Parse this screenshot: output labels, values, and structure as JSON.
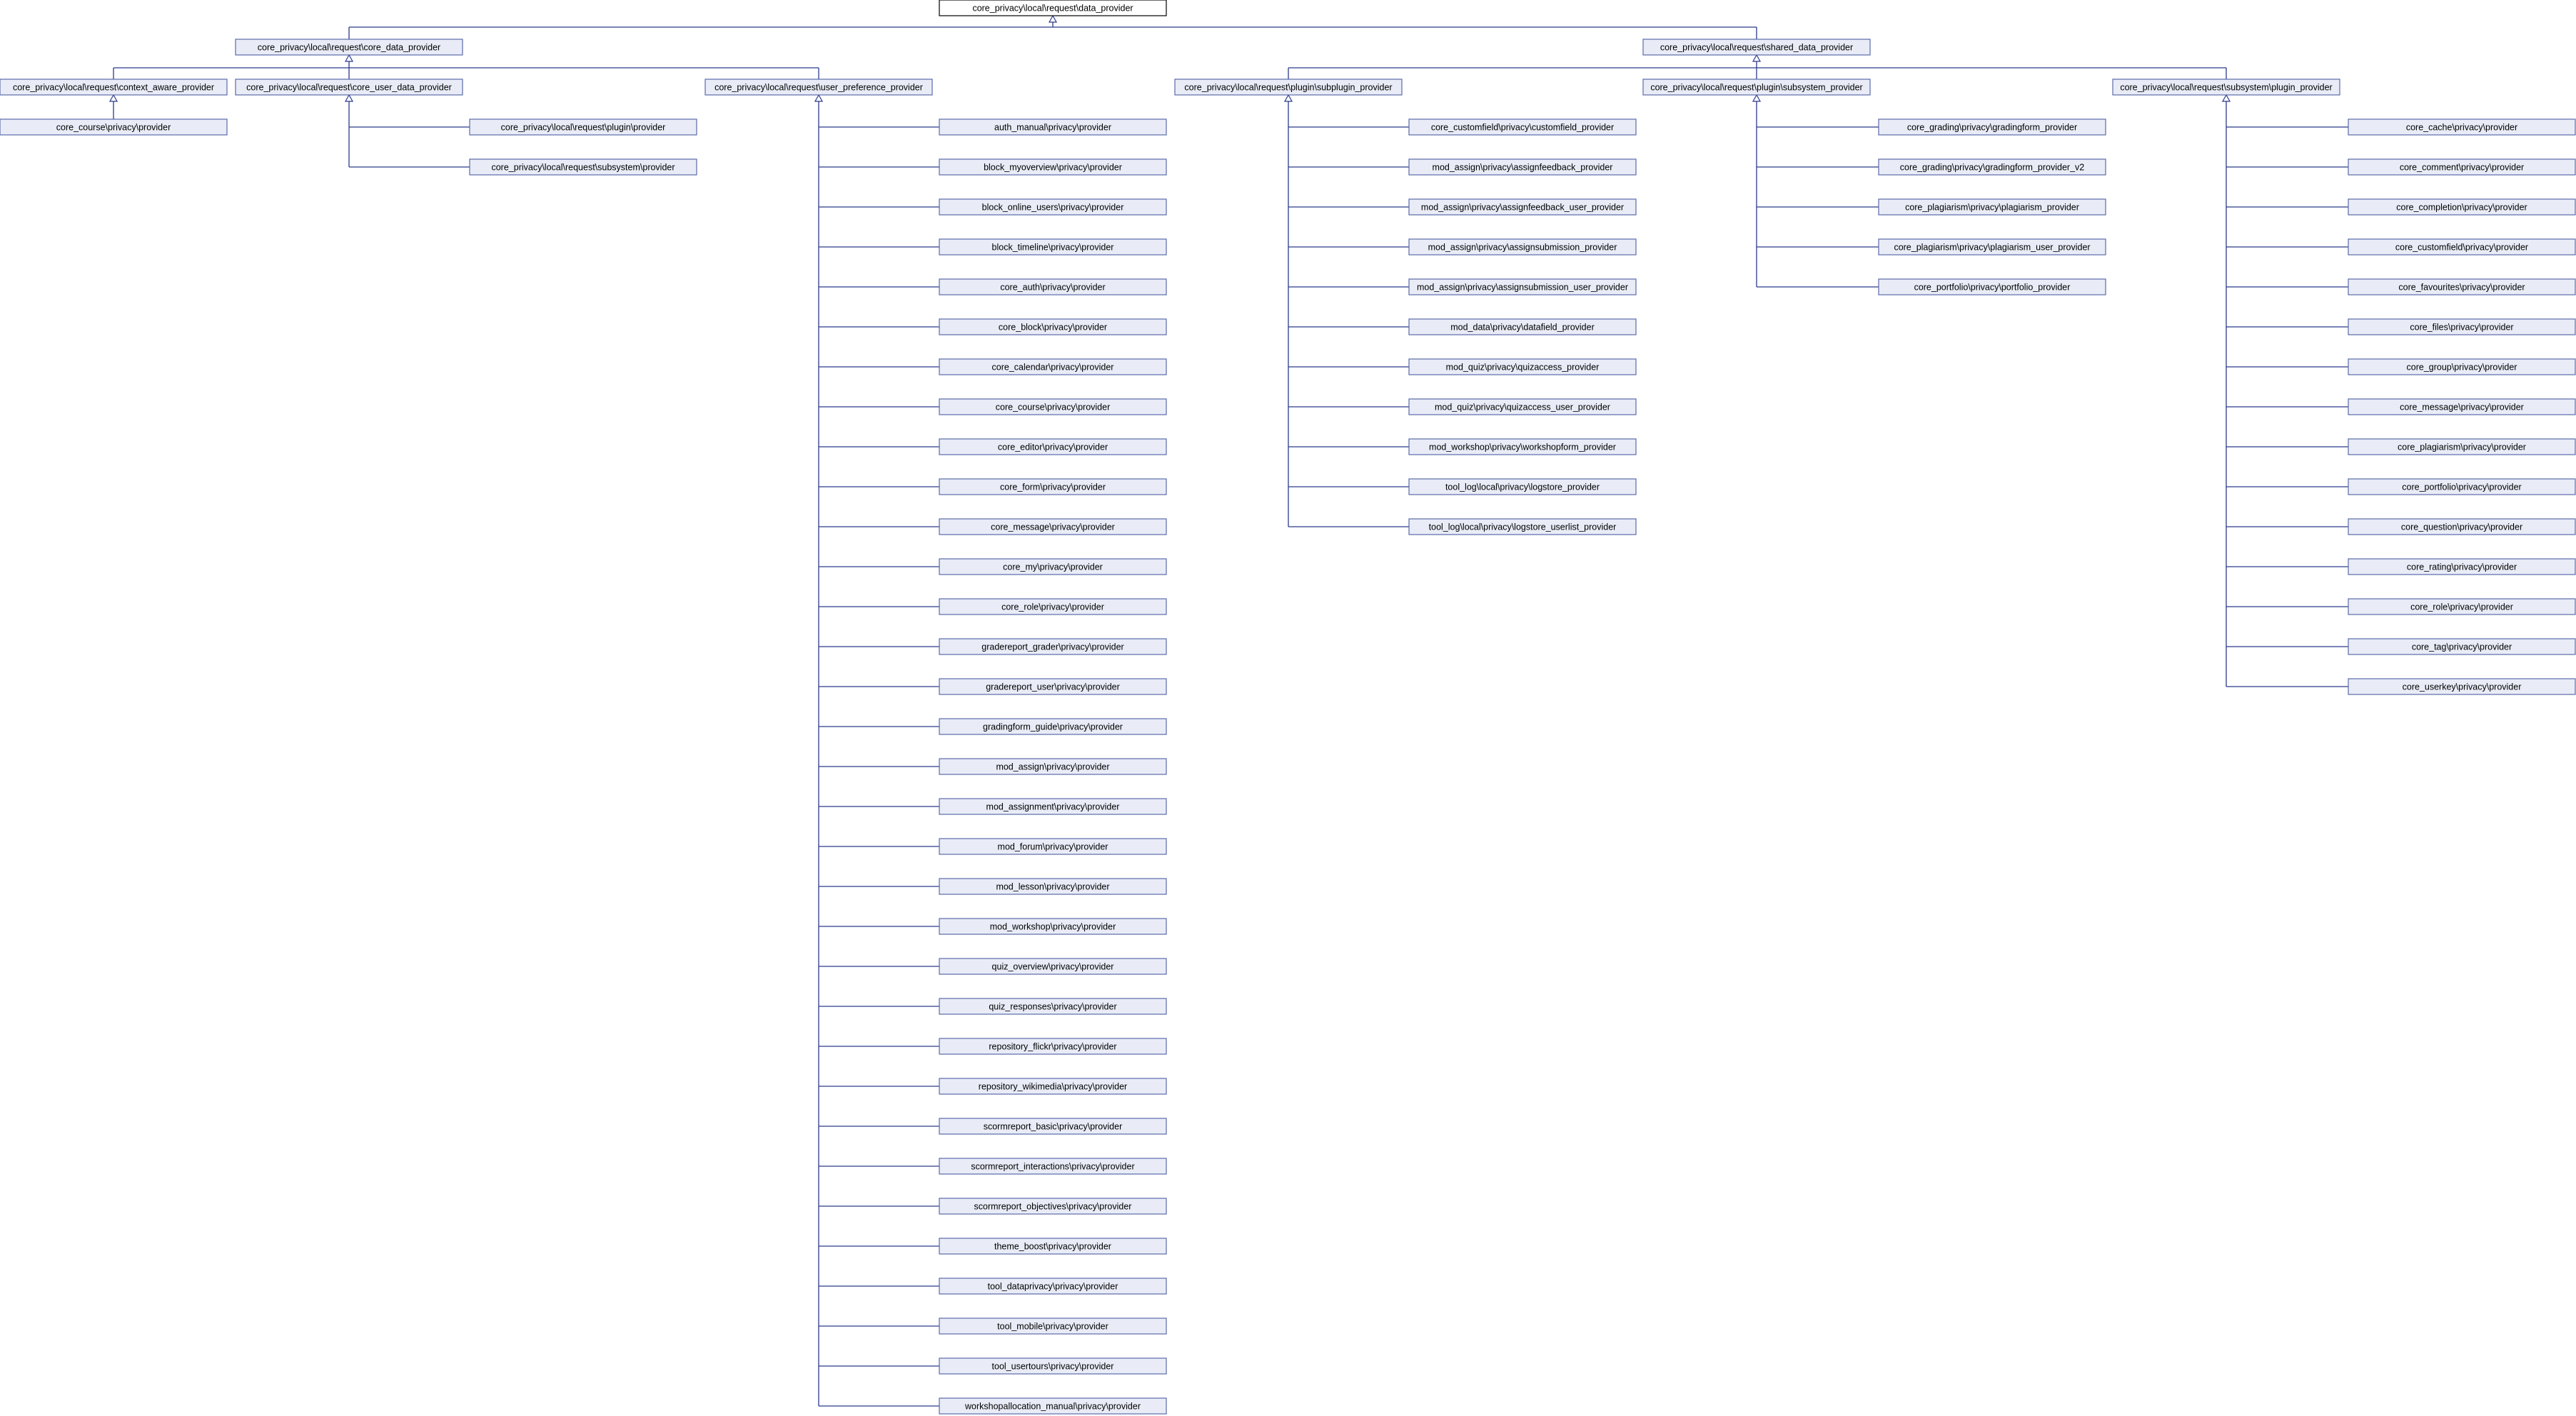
{
  "diagram": {
    "root": "core_privacy\\local\\request\\data_provider",
    "level1": [
      {
        "id": "core_data_provider",
        "label": "core_privacy\\local\\request\\core_data_provider"
      },
      {
        "id": "shared_data_provider",
        "label": "core_privacy\\local\\request\\shared_data_provider"
      }
    ],
    "level2": [
      {
        "id": "context_aware_provider",
        "parent": "core_data_provider",
        "label": "core_privacy\\local\\request\\context_aware_provider"
      },
      {
        "id": "core_user_data_provider",
        "parent": "core_data_provider",
        "label": "core_privacy\\local\\request\\core_user_data_provider"
      },
      {
        "id": "user_preference_provider",
        "parent": "core_data_provider",
        "label": "core_privacy\\local\\request\\user_preference_provider"
      },
      {
        "id": "subplugin_provider",
        "parent": "shared_data_provider",
        "label": "core_privacy\\local\\request\\plugin\\subplugin_provider"
      },
      {
        "id": "subsystem_provider",
        "parent": "shared_data_provider",
        "label": "core_privacy\\local\\request\\plugin\\subsystem_provider"
      },
      {
        "id": "plugin_provider",
        "parent": "shared_data_provider",
        "label": "core_privacy\\local\\request\\subsystem\\plugin_provider"
      }
    ],
    "children": {
      "context_aware_provider": [
        "core_course\\privacy\\provider"
      ],
      "core_user_data_provider": [
        "core_privacy\\local\\request\\plugin\\provider",
        "core_privacy\\local\\request\\subsystem\\provider"
      ],
      "user_preference_provider": [
        "auth_manual\\privacy\\provider",
        "block_myoverview\\privacy\\provider",
        "block_online_users\\privacy\\provider",
        "block_timeline\\privacy\\provider",
        "core_auth\\privacy\\provider",
        "core_block\\privacy\\provider",
        "core_calendar\\privacy\\provider",
        "core_course\\privacy\\provider",
        "core_editor\\privacy\\provider",
        "core_form\\privacy\\provider",
        "core_message\\privacy\\provider",
        "core_my\\privacy\\provider",
        "core_role\\privacy\\provider",
        "gradereport_grader\\privacy\\provider",
        "gradereport_user\\privacy\\provider",
        "gradingform_guide\\privacy\\provider",
        "mod_assign\\privacy\\provider",
        "mod_assignment\\privacy\\provider",
        "mod_forum\\privacy\\provider",
        "mod_lesson\\privacy\\provider",
        "mod_workshop\\privacy\\provider",
        "quiz_overview\\privacy\\provider",
        "quiz_responses\\privacy\\provider",
        "repository_flickr\\privacy\\provider",
        "repository_wikimedia\\privacy\\provider",
        "scormreport_basic\\privacy\\provider",
        "scormreport_interactions\\privacy\\provider",
        "scormreport_objectives\\privacy\\provider",
        "theme_boost\\privacy\\provider",
        "tool_dataprivacy\\privacy\\provider",
        "tool_mobile\\privacy\\provider",
        "tool_usertours\\privacy\\provider",
        "workshopallocation_manual\\privacy\\provider"
      ],
      "subplugin_provider": [
        "core_customfield\\privacy\\customfield_provider",
        "mod_assign\\privacy\\assignfeedback_provider",
        "mod_assign\\privacy\\assignfeedback_user_provider",
        "mod_assign\\privacy\\assignsubmission_provider",
        "mod_assign\\privacy\\assignsubmission_user_provider",
        "mod_data\\privacy\\datafield_provider",
        "mod_quiz\\privacy\\quizaccess_provider",
        "mod_quiz\\privacy\\quizaccess_user_provider",
        "mod_workshop\\privacy\\workshopform_provider",
        "tool_log\\local\\privacy\\logstore_provider",
        "tool_log\\local\\privacy\\logstore_userlist_provider"
      ],
      "subsystem_provider": [
        "core_grading\\privacy\\gradingform_provider",
        "core_grading\\privacy\\gradingform_provider_v2",
        "core_plagiarism\\privacy\\plagiarism_provider",
        "core_plagiarism\\privacy\\plagiarism_user_provider",
        "core_portfolio\\privacy\\portfolio_provider"
      ],
      "plugin_provider": [
        "core_cache\\privacy\\provider",
        "core_comment\\privacy\\provider",
        "core_completion\\privacy\\provider",
        "core_customfield\\privacy\\provider",
        "core_favourites\\privacy\\provider",
        "core_files\\privacy\\provider",
        "core_group\\privacy\\provider",
        "core_message\\privacy\\provider",
        "core_plagiarism\\privacy\\provider",
        "core_portfolio\\privacy\\provider",
        "core_question\\privacy\\provider",
        "core_rating\\privacy\\provider",
        "core_role\\privacy\\provider",
        "core_tag\\privacy\\provider",
        "core_userkey\\privacy\\provider"
      ]
    }
  },
  "colors": {
    "root_border": "#000000",
    "node_border": "#5b6aa8",
    "node_fill": "#e9ecf7",
    "edge": "#2a3a8c"
  }
}
